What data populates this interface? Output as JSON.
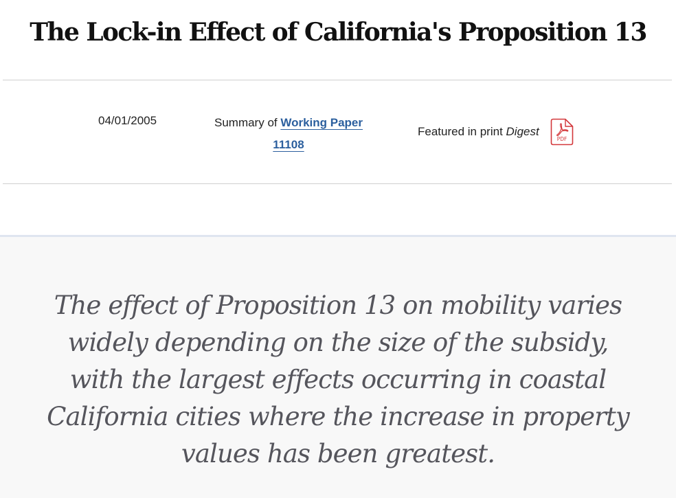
{
  "article": {
    "title": "The Lock-in Effect of California's Proposition 13"
  },
  "meta": {
    "date": "04/01/2005",
    "summary_prefix": "Summary of ",
    "working_paper_link": "Working Paper 11108",
    "featured_prefix": "Featured in print ",
    "digest_word": "Digest",
    "pdf_icon_label": "PDF"
  },
  "summary": {
    "pull_quote": "The effect of Proposition 13 on mobility varies widely depending on the size of the subsidy, with the largest effects occurring in coastal California cities where the increase in property values has been greatest."
  },
  "colors": {
    "link": "#2b5f9e",
    "pdf_icon": "#d3373a",
    "quote_text": "#55555c",
    "divider": "#cfcfcf",
    "band_accent": "#dfe5f0"
  },
  "icons": {
    "pdf": "pdf-file-icon"
  }
}
